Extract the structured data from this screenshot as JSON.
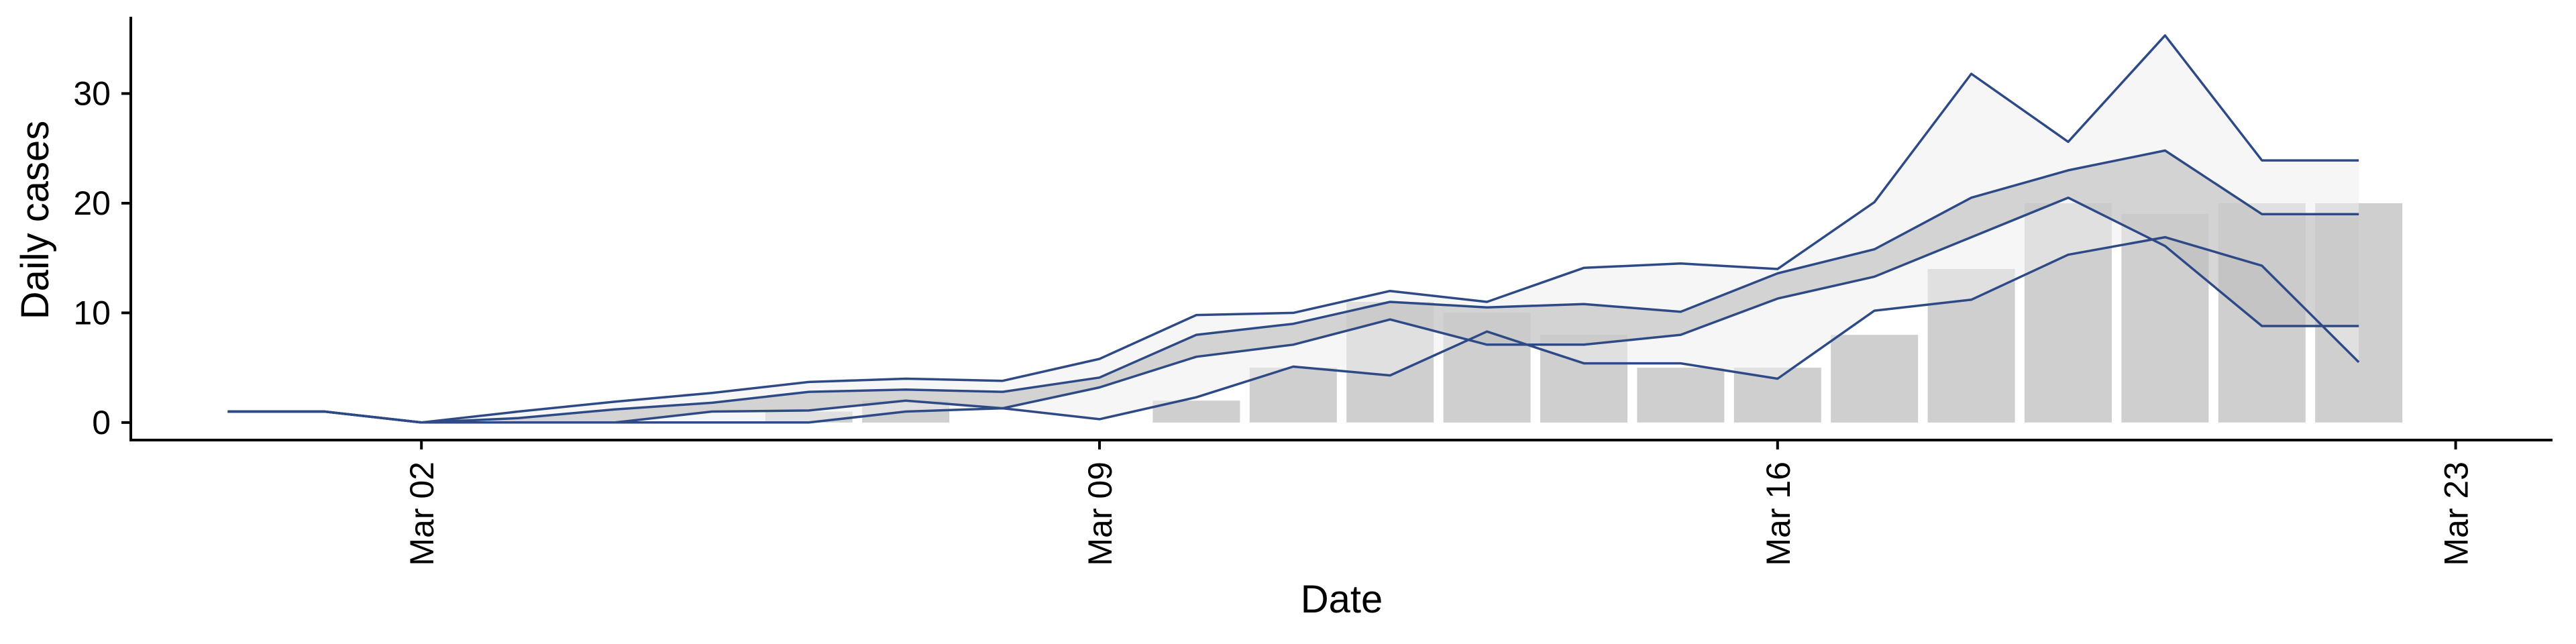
{
  "chart_data": {
    "type": "bar",
    "xlabel": "Date",
    "ylabel": "Daily cases",
    "x_ticks": [
      {
        "date": "2020-03-02",
        "label": "Mar 02"
      },
      {
        "date": "2020-03-09",
        "label": "Mar 09"
      },
      {
        "date": "2020-03-16",
        "label": "Mar 16"
      },
      {
        "date": "2020-03-23",
        "label": "Mar 23"
      }
    ],
    "y_ticks": [
      0,
      10,
      20,
      30
    ],
    "xlim": [
      "2020-02-28",
      "2020-03-24"
    ],
    "ylim": [
      -1.6,
      37
    ],
    "grid": false,
    "bars": {
      "color": "#cfcfcf",
      "x": [
        "2020-03-06",
        "2020-03-07",
        "2020-03-08",
        "2020-03-09",
        "2020-03-10",
        "2020-03-11",
        "2020-03-12",
        "2020-03-13",
        "2020-03-14",
        "2020-03-15",
        "2020-03-16",
        "2020-03-17",
        "2020-03-18",
        "2020-03-19",
        "2020-03-20",
        "2020-03-21",
        "2020-03-22"
      ],
      "values": [
        1,
        2,
        0,
        0,
        2,
        5,
        11,
        10,
        8,
        5,
        5,
        8,
        14,
        20,
        19,
        20,
        20
      ]
    },
    "bands": {
      "line_color": "#2e4a86",
      "x": [
        "2020-02-29",
        "2020-03-01",
        "2020-03-02",
        "2020-03-03",
        "2020-03-04",
        "2020-03-05",
        "2020-03-06",
        "2020-03-07",
        "2020-03-08",
        "2020-03-09",
        "2020-03-10",
        "2020-03-11",
        "2020-03-12",
        "2020-03-13",
        "2020-03-14",
        "2020-03-15",
        "2020-03-16",
        "2020-03-17",
        "2020-03-18",
        "2020-03-19",
        "2020-03-20",
        "2020-03-21",
        "2020-03-22"
      ],
      "outer": {
        "fill": "#efefef",
        "lower": [
          1,
          1,
          0,
          0,
          0,
          0,
          0,
          1,
          1.3,
          0.3,
          2.3,
          5.1,
          4.3,
          8.3,
          5.4,
          5.4,
          4,
          10.2,
          11.2,
          15.3,
          16.9,
          14.3,
          5.5
        ],
        "upper": [
          1,
          1,
          0,
          1,
          1.9,
          2.7,
          3.7,
          4,
          3.8,
          5.8,
          9.8,
          10,
          12,
          11,
          14.1,
          14.5,
          14,
          20.1,
          31.8,
          25.6,
          35.3,
          23.9,
          23.9
        ]
      },
      "inner": {
        "fill": "#bdbdbd",
        "lower": [
          1,
          1,
          0,
          0,
          0,
          1,
          1.1,
          2,
          1.3,
          3.2,
          6,
          7.1,
          9.4,
          7.1,
          7.1,
          8,
          11.3,
          13.3,
          16.9,
          20.5,
          16.1,
          8.8,
          8.8
        ],
        "upper": [
          1,
          1,
          0,
          0.4,
          1.2,
          1.8,
          2.8,
          3,
          2.8,
          4.1,
          8,
          9,
          11,
          10.5,
          10.8,
          10.1,
          13.6,
          15.8,
          20.5,
          23,
          24.8,
          19,
          19
        ]
      }
    }
  }
}
